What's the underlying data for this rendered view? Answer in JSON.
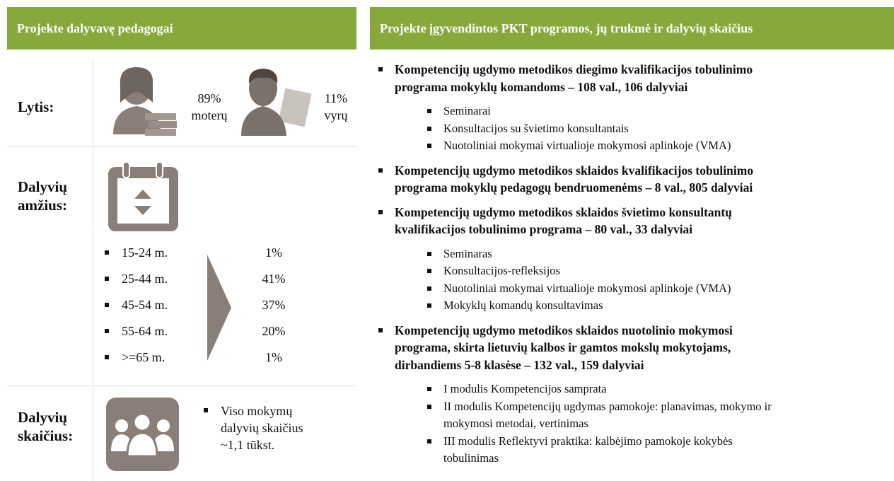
{
  "left": {
    "title": "Projekte dalyvavę pedagogai",
    "gender": {
      "label": "Lytis:",
      "female": {
        "share": "89%",
        "text": "moterų"
      },
      "male": {
        "share": "11%",
        "text": "vyrų"
      }
    },
    "age": {
      "label_lines": [
        "Dalyvių",
        "amžius:"
      ],
      "rows": [
        {
          "range": "15-24 m.",
          "share": "1%"
        },
        {
          "range": "25-44 m.",
          "share": "41%"
        },
        {
          "range": "45-54 m.",
          "share": "37%"
        },
        {
          "range": "55-64 m.",
          "share": "20%"
        },
        {
          "range": ">=65 m.",
          "share": "1%"
        }
      ]
    },
    "count": {
      "label_lines": [
        "Dalyvių",
        "skaičius:"
      ],
      "text_lines": [
        "Viso mokymų",
        "dalyvių skaičius",
        "~1,1 tūkst."
      ]
    }
  },
  "right": {
    "title": "Projekte įgyvendintos PKT programos, jų trukmė ir dalyvių skaičius",
    "programs": [
      {
        "title_lines": [
          "Kompetencijų ugdymo metodikos diegimo kvalifikacijos tobulinimo",
          "programa mokyklų komandoms – 108 val., 106 dalyviai"
        ],
        "items": [
          [
            "Seminarai"
          ],
          [
            "Konsultacijos su švietimo konsultantais"
          ],
          [
            "Nuotoliniai mokymai virtualioje mokymosi aplinkoje (VMA)"
          ]
        ]
      },
      {
        "title_lines": [
          "Kompetencijų ugdymo metodikos sklaidos kvalifikacijos tobulinimo",
          "programa mokyklų pedagogų bendruomenėms – 8 val., 805 dalyviai"
        ],
        "items": []
      },
      {
        "title_lines": [
          "Kompetencijų ugdymo metodikos sklaidos švietimo konsultantų",
          "kvalifikacijos tobulinimo programa – 80 val., 33 dalyviai"
        ],
        "items": [
          [
            "Seminaras"
          ],
          [
            "Konsultacijos-refleksijos"
          ],
          [
            "Nuotoliniai mokymai virtualioje mokymosi aplinkoje (VMA)"
          ],
          [
            "Mokyklų komandų konsultavimas"
          ]
        ]
      },
      {
        "title_lines": [
          "Kompetencijų ugdymo metodikos sklaidos nuotolinio mokymosi",
          "programa, skirta lietuvių kalbos ir gamtos mokslų mokytojams,",
          "dirbandiems 5-8 klasėse – 132 val., 159 dalyviai"
        ],
        "items": [
          [
            "I modulis Kompetencijos samprata"
          ],
          [
            "II modulis Kompetencijų ugdymas pamokoje: planavimas, mokymo ir",
            "mokymosi metodai, vertinimas"
          ],
          [
            "III modulis Reflektyvi praktika: kalbėjimo pamokoje kokybės",
            "tobulinimas"
          ]
        ]
      }
    ]
  }
}
